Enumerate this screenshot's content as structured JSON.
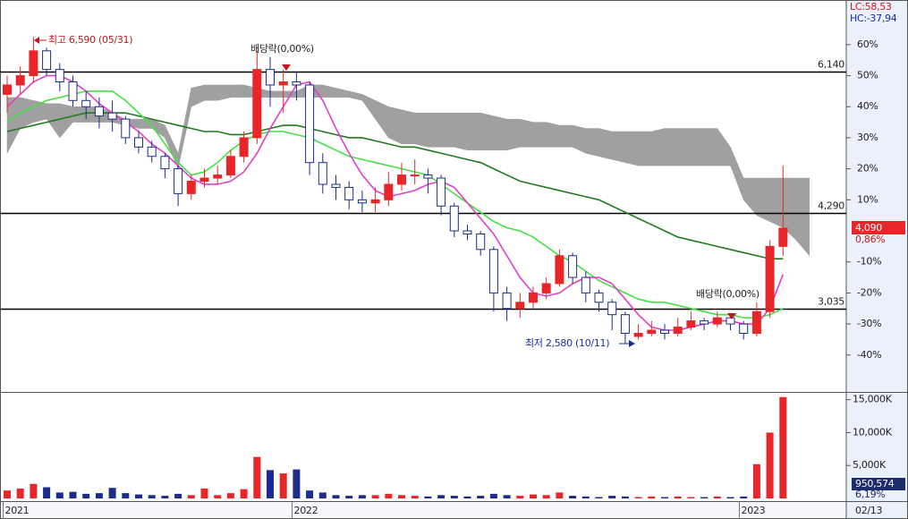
{
  "chart_data": {
    "type": "candlestick",
    "categories": [
      "2021",
      null,
      null,
      null,
      null,
      null,
      null,
      null,
      null,
      null,
      null,
      null,
      null,
      null,
      null,
      null,
      null,
      null,
      null,
      null,
      null,
      null,
      "2022",
      null,
      null,
      null,
      null,
      null,
      null,
      null,
      null,
      null,
      null,
      null,
      null,
      null,
      null,
      null,
      null,
      null,
      null,
      null,
      null,
      null,
      null,
      null,
      null,
      null,
      null,
      null,
      null,
      null,
      null,
      null,
      null,
      null,
      "2023",
      null,
      null,
      null
    ],
    "candles": [
      [
        44,
        50,
        38,
        47
      ],
      [
        47,
        53,
        44,
        50
      ],
      [
        50,
        62.5,
        48,
        58
      ],
      [
        58,
        59,
        50,
        52
      ],
      [
        52,
        54,
        45,
        48
      ],
      [
        48,
        50,
        40,
        42
      ],
      [
        42,
        45,
        36,
        40
      ],
      [
        40,
        43,
        33,
        37
      ],
      [
        38,
        42,
        32,
        36
      ],
      [
        36,
        37,
        28,
        30
      ],
      [
        30,
        32,
        25,
        27
      ],
      [
        27,
        29,
        22,
        24
      ],
      [
        24,
        25,
        17,
        20
      ],
      [
        20,
        21,
        8,
        12
      ],
      [
        12,
        18,
        10,
        16
      ],
      [
        16,
        20,
        14,
        17
      ],
      [
        17,
        21,
        15,
        18
      ],
      [
        18,
        26,
        17,
        24
      ],
      [
        24,
        32,
        22,
        30
      ],
      [
        30,
        58,
        28,
        52
      ],
      [
        52,
        56,
        40,
        47
      ],
      [
        47,
        52,
        38,
        48
      ],
      [
        48,
        51,
        42,
        47
      ],
      [
        47,
        48,
        18,
        22
      ],
      [
        22,
        25,
        12,
        15
      ],
      [
        15,
        18,
        10,
        14
      ],
      [
        14,
        16,
        7,
        10
      ],
      [
        10,
        13,
        6,
        9
      ],
      [
        9,
        14,
        6,
        10
      ],
      [
        10,
        19,
        8,
        15
      ],
      [
        15,
        22,
        13,
        18
      ],
      [
        18,
        23,
        15,
        18
      ],
      [
        18,
        20,
        12,
        17
      ],
      [
        17,
        18,
        5,
        8
      ],
      [
        8,
        9,
        -2,
        0
      ],
      [
        0,
        2,
        -3,
        -1
      ],
      [
        -1,
        0,
        -8,
        -6
      ],
      [
        -6,
        -5,
        -26,
        -20
      ],
      [
        -20,
        -18,
        -29,
        -25
      ],
      [
        -25,
        -20,
        -28,
        -23
      ],
      [
        -23,
        -18,
        -25,
        -20
      ],
      [
        -20,
        -15,
        -22,
        -17
      ],
      [
        -17,
        -6,
        -18,
        -8
      ],
      [
        -8,
        -7,
        -17,
        -15
      ],
      [
        -15,
        -13,
        -23,
        -20
      ],
      [
        -20,
        -19,
        -26,
        -23
      ],
      [
        -23,
        -22,
        -32,
        -27
      ],
      [
        -27,
        -26,
        -36.4,
        -33
      ],
      [
        -34,
        -30,
        -35,
        -33
      ],
      [
        -33,
        -29,
        -34,
        -32
      ],
      [
        -32,
        -30,
        -35,
        -33
      ],
      [
        -33,
        -28,
        -34,
        -31
      ],
      [
        -31,
        -26,
        -32,
        -29
      ],
      [
        -29,
        -28,
        -32,
        -30
      ],
      [
        -30,
        -26,
        -31,
        -28
      ],
      [
        -28,
        -27,
        -32,
        -30
      ],
      [
        -30,
        -29,
        -35,
        -33
      ],
      [
        -33,
        -23,
        -34,
        -26
      ],
      [
        -26,
        -3,
        -28,
        -5
      ],
      [
        -5,
        21,
        -8,
        0.86
      ]
    ],
    "up_color": "#e8262a",
    "down_color": "#1c2c8c",
    "lines": [
      {
        "color": "#1f7a1f",
        "values": [
          32,
          33,
          34,
          35,
          36,
          37,
          38,
          38,
          38,
          38,
          37,
          36,
          35,
          34,
          33,
          32,
          32,
          31,
          31,
          32,
          33,
          34,
          34,
          33,
          32,
          31,
          30,
          30,
          29,
          28,
          27,
          27,
          26,
          25,
          24,
          23,
          22,
          20,
          18,
          16,
          15,
          14,
          13,
          12,
          11,
          10,
          8,
          6,
          4,
          2,
          0,
          -2,
          -3,
          -4,
          -5,
          -6,
          -7,
          -8,
          -9,
          -9
        ]
      },
      {
        "color": "#44e044",
        "values": [
          35,
          38,
          40,
          42,
          43,
          44,
          45,
          45,
          45,
          42,
          38,
          34,
          28,
          22,
          18,
          19,
          22,
          26,
          29,
          31,
          32,
          32,
          31,
          30,
          28,
          26,
          24,
          23,
          22,
          21,
          20,
          19,
          18,
          15,
          12,
          9,
          6,
          3,
          1,
          0,
          -2,
          -5,
          -8,
          -10,
          -13,
          -16,
          -18,
          -20,
          -22,
          -23,
          -23,
          -24,
          -25,
          -26,
          -27,
          -27,
          -28,
          -28,
          -27,
          -25
        ]
      },
      {
        "color": "#e040c8",
        "values": [
          40,
          44,
          48,
          50,
          50,
          48,
          45,
          41,
          38,
          35,
          32,
          28,
          25,
          21,
          17,
          15,
          15,
          16,
          19,
          25,
          33,
          40,
          47,
          48,
          42,
          33,
          25,
          18,
          13,
          11,
          12,
          13,
          15,
          16,
          14,
          9,
          4,
          -1,
          -8,
          -15,
          -20,
          -21,
          -20,
          -17,
          -15,
          -15,
          -17,
          -22,
          -27,
          -31,
          -32,
          -32,
          -31,
          -30,
          -29,
          -29,
          -30,
          -30,
          -25,
          -14
        ]
      }
    ],
    "cloud": {
      "color": "#a0a0a0",
      "upper": [
        43,
        43,
        42,
        41,
        41,
        40,
        40,
        40,
        38,
        36,
        36,
        36,
        34,
        25,
        46,
        47,
        47,
        47,
        47,
        46,
        45,
        45,
        45,
        47,
        47,
        46,
        45,
        44,
        42,
        40,
        39,
        38,
        38,
        38,
        38,
        38,
        38,
        37,
        36,
        36,
        35,
        35,
        34,
        34,
        33,
        33,
        32,
        32,
        32,
        32,
        33,
        33,
        33,
        33,
        33,
        27,
        17,
        17,
        17,
        17,
        17,
        17
      ],
      "lower": [
        25,
        33,
        35,
        36,
        30,
        35,
        35,
        35,
        35,
        34,
        33,
        33,
        30,
        20,
        40,
        42,
        42,
        43,
        43,
        43,
        43,
        43,
        43,
        43,
        43,
        43,
        43,
        42,
        36,
        30,
        28,
        28,
        27,
        27,
        27,
        26,
        26,
        26,
        26,
        27,
        27,
        27,
        27,
        27,
        25,
        24,
        23,
        22,
        21,
        21,
        21,
        21,
        21,
        21,
        21,
        21,
        10,
        5,
        3,
        1,
        -3,
        -8
      ]
    },
    "ylim": [
      -51.6,
      73.8
    ],
    "yticks": [
      {
        "value": 60,
        "label": "60%"
      },
      {
        "value": 50,
        "label": "50%"
      },
      {
        "value": 40,
        "label": "40%"
      },
      {
        "value": 30,
        "label": "30%"
      },
      {
        "value": 20,
        "label": "20%"
      },
      {
        "value": 10,
        "label": "10%"
      },
      {
        "value": -10,
        "label": "-10%"
      },
      {
        "value": -20,
        "label": "-20%"
      },
      {
        "value": -30,
        "label": "-30%"
      },
      {
        "value": -40,
        "label": "-40%"
      }
    ],
    "levels": [
      {
        "label": "6,140",
        "value": 51.4
      },
      {
        "label": "4,290",
        "value": 5.8
      },
      {
        "label": "3,035",
        "value": -25.2
      }
    ],
    "annotations": {
      "high": "최고 6,590 (05/31)",
      "low": "최저 2,580 (10/11)",
      "dividend_1": "배당락(0,00%)",
      "dividend_2": "배당락(0,00%)"
    },
    "readout": {
      "lc": "LC:58,53",
      "hc": "HC:-37,94",
      "price": "4,090",
      "change": "0,86%",
      "volume": "950,574",
      "volume_change": "6,19%",
      "date": "02/13"
    },
    "volume": {
      "values": [
        1200,
        1500,
        2200,
        1700,
        900,
        1000,
        700,
        800,
        1600,
        800,
        600,
        500,
        400,
        700,
        500,
        1500,
        500,
        800,
        1400,
        6300,
        4300,
        3800,
        4400,
        1200,
        900,
        500,
        400,
        500,
        500,
        700,
        500,
        400,
        300,
        500,
        400,
        300,
        400,
        700,
        500,
        400,
        600,
        500,
        900,
        400,
        300,
        200,
        400,
        300,
        200,
        300,
        200,
        300,
        200,
        200,
        300,
        200,
        300,
        5200,
        10000,
        15400
      ],
      "ylim": [
        0,
        15900
      ],
      "yticks": [
        {
          "value": 15000,
          "label": "15,000K"
        },
        {
          "value": 10000,
          "label": "10,000K"
        },
        {
          "value": 5000,
          "label": "5,000K"
        }
      ]
    }
  }
}
